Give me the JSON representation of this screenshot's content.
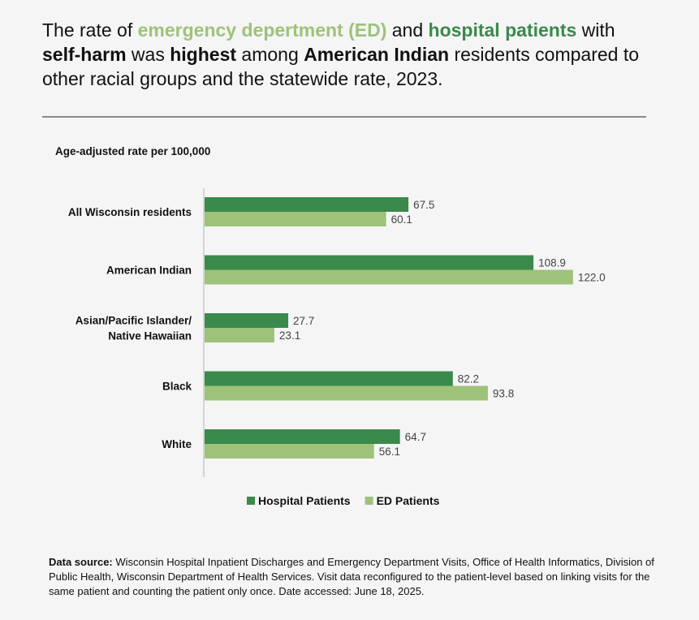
{
  "headline": {
    "t1": "The rate of ",
    "ed": "emergency depertment (ED)",
    "t2": " and ",
    "hosp": "hospital patients",
    "t3": " with ",
    "b1": "self-harm",
    "t4": " was ",
    "b2": "highest",
    "t5": " among ",
    "b3": "American Indian",
    "t6": " residents compared to other racial groups and the statewide rate, 2023."
  },
  "colors": {
    "hospital": "#3a8a4c",
    "ed": "#9ec27a",
    "axis": "#bfbfbf",
    "divider": "#8a8a8a"
  },
  "chart_data": {
    "type": "bar",
    "orientation": "horizontal",
    "ylabel": "Age-adjusted rate per 100,000",
    "categories": [
      [
        "All Wisconsin residents"
      ],
      [
        "American Indian"
      ],
      [
        "Asian/Pacific Islander/",
        "Native Hawaiian"
      ],
      [
        "Black"
      ],
      [
        "White"
      ]
    ],
    "series": [
      {
        "name": "Hospital Patients",
        "color": "#3a8a4c",
        "values": [
          67.5,
          108.9,
          27.7,
          82.2,
          64.7
        ],
        "labels": [
          "67.5",
          "108.9",
          "27.7",
          "82.2",
          "64.7"
        ]
      },
      {
        "name": "ED Patients",
        "color": "#9ec27a",
        "values": [
          60.1,
          122.0,
          23.1,
          93.8,
          56.1
        ],
        "labels": [
          "60.1",
          "122.0",
          "23.1",
          "93.8",
          "56.1"
        ]
      }
    ],
    "xlim": [
      0,
      130
    ],
    "legend_position": "bottom"
  },
  "source": {
    "label": "Data source:",
    "text": " Wisconsin Hospital Inpatient Discharges and Emergency Department Visits, Office of Health Informatics, Division of Public Health, Wisconsin Department of Health Services. Visit data reconfigured to the patient-level based on linking visits for the same patient and counting the patient only once. Date accessed: June 18, 2025."
  }
}
